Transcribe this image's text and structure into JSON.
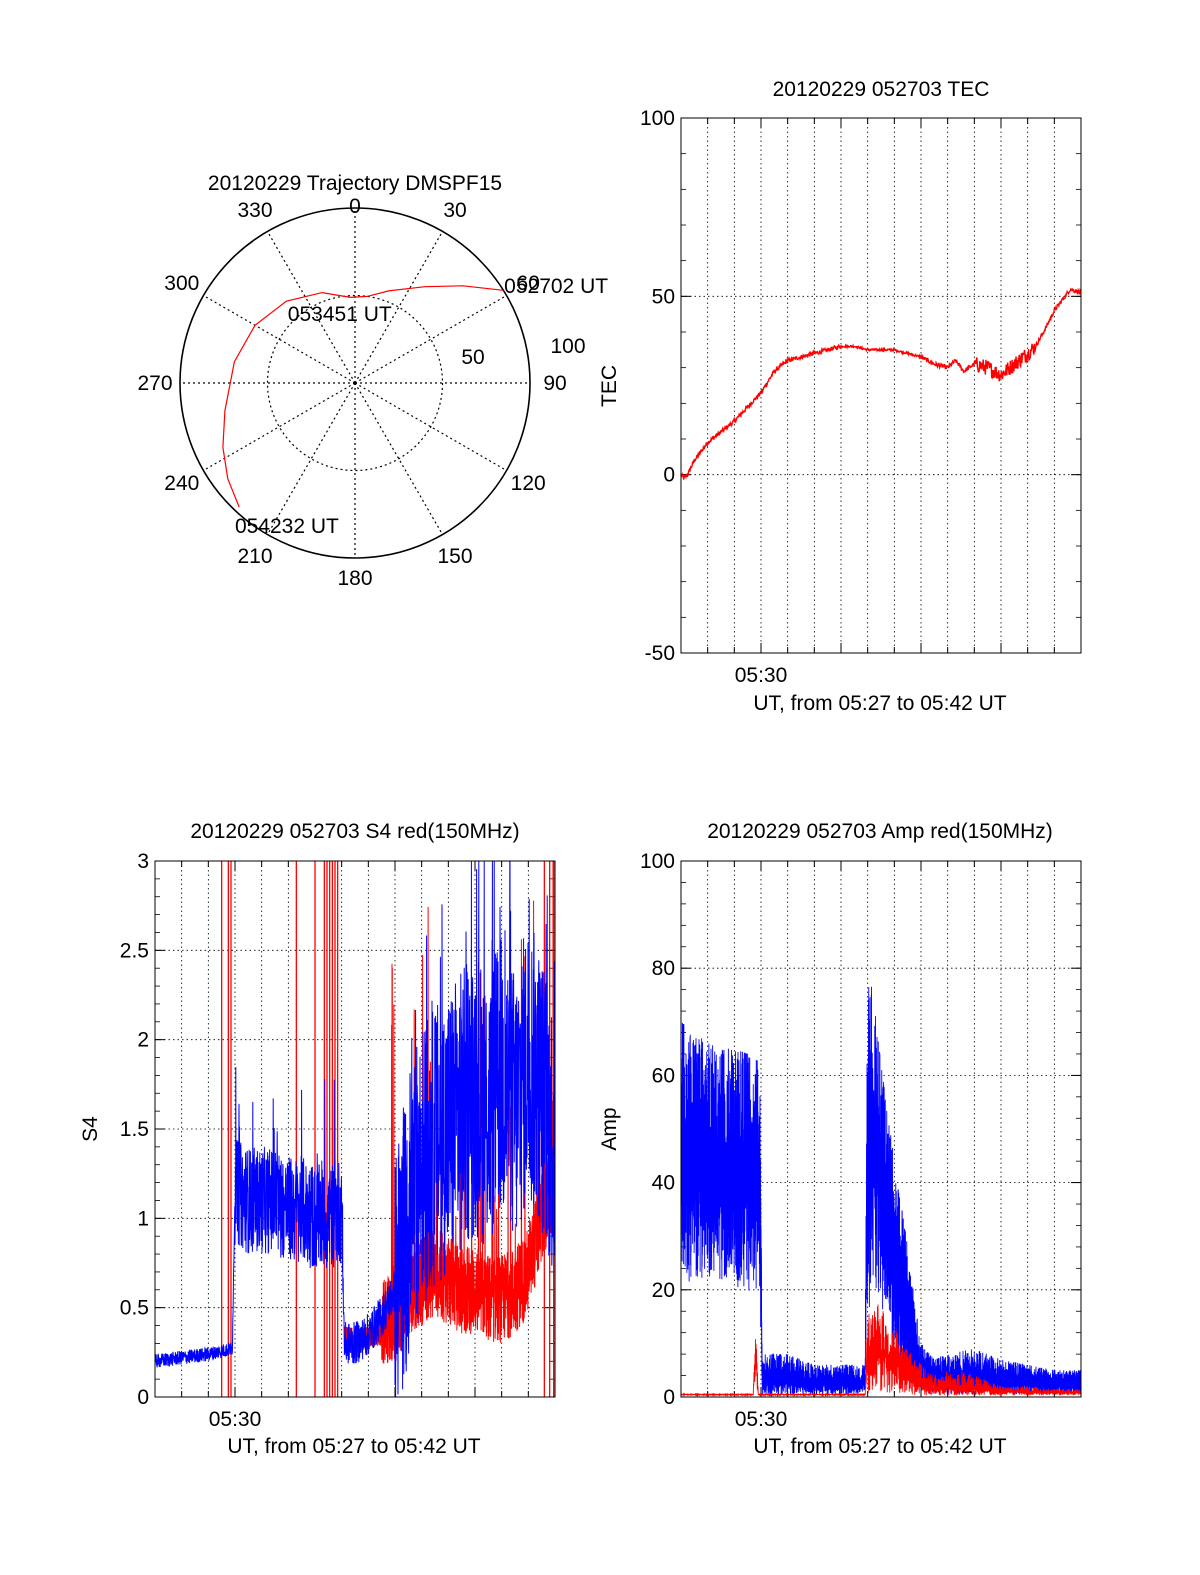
{
  "colors": {
    "red": "#ff0000",
    "blue": "#0000ff",
    "axis": "#000000",
    "grid": "#000000",
    "background": "#ffffff"
  },
  "chart_data": [
    {
      "type": "polar",
      "title": "20120229 Trajectory DMSPF15",
      "angle_labels": [
        "0",
        "30",
        "60",
        "90",
        "120",
        "150",
        "180",
        "210",
        "240",
        "270",
        "300",
        "330"
      ],
      "angles_deg": [
        0,
        30,
        60,
        90,
        120,
        150,
        180,
        210,
        240,
        270,
        300,
        330
      ],
      "radial_labels": [
        "50",
        "100"
      ],
      "radial_values": [
        50,
        100
      ],
      "rlim": [
        0,
        100
      ],
      "grid": true,
      "trajectory": {
        "color": "red",
        "points": [
          {
            "az": 58,
            "r": 100
          },
          {
            "az": 48,
            "r": 83
          },
          {
            "az": 36,
            "r": 68
          },
          {
            "az": 20,
            "r": 56
          },
          {
            "az": 8,
            "r": 50
          },
          {
            "az": -3,
            "r": 49
          },
          {
            "az": -20,
            "r": 55
          },
          {
            "az": -40,
            "r": 61
          },
          {
            "az": -60,
            "r": 66
          },
          {
            "az": -80,
            "r": 70
          },
          {
            "az": -102,
            "r": 76
          },
          {
            "az": -116,
            "r": 84
          },
          {
            "az": -127,
            "r": 91
          },
          {
            "az": -137,
            "r": 97
          }
        ]
      },
      "annotations": [
        {
          "text": "052702 UT",
          "az": 57,
          "r": 103
        },
        {
          "text": "053451 UT",
          "az": -10,
          "r": 50
        },
        {
          "text": "054232 UT",
          "az": -135,
          "r": 97
        }
      ]
    },
    {
      "type": "line",
      "title": "20120229 052703 TEC",
      "xlabel": "UT, from 05:27 to 05:42 UT",
      "ylabel": "TEC",
      "xlim": [
        0,
        15
      ],
      "ylim": [
        -50,
        100
      ],
      "yticks": [
        -50,
        0,
        50,
        100
      ],
      "xtick_labels": [
        {
          "x": 3,
          "label": "05:30"
        }
      ],
      "grid": true,
      "series": [
        {
          "name": "TEC",
          "color": "red",
          "x": [
            0,
            0.1,
            0.25,
            0.5,
            1,
            1.5,
            2,
            2.5,
            3,
            3.5,
            4,
            4.5,
            5,
            5.5,
            6,
            6.5,
            7,
            7.5,
            8,
            8.5,
            9,
            9.5,
            10,
            10.3,
            10.6,
            11,
            11.5,
            12,
            12.5,
            13,
            13.3,
            13.6,
            14,
            14.2,
            14.6,
            15
          ],
          "y": [
            0,
            -1,
            0,
            4,
            9,
            12,
            15,
            19,
            23,
            29,
            32,
            33,
            34,
            35,
            36,
            36,
            35,
            35,
            35,
            34,
            33,
            31,
            30,
            32,
            29,
            31,
            30,
            28,
            31,
            34,
            36,
            40,
            46,
            48,
            52,
            51
          ]
        }
      ]
    },
    {
      "type": "line",
      "title": "20120229 052703 S4 red(150MHz)",
      "xlabel": "UT, from 05:27 to 05:42 UT",
      "ylabel": "S4",
      "xlim": [
        0,
        15
      ],
      "ylim": [
        0,
        3
      ],
      "yticks": [
        0,
        0.5,
        1,
        1.5,
        2,
        2.5,
        3
      ],
      "ytick_labels": [
        "0",
        "0.5",
        "1",
        "1.5",
        "2",
        "2.5",
        "3"
      ],
      "xtick_labels": [
        {
          "x": 3,
          "label": "05:30"
        }
      ],
      "grid": true,
      "series": [
        {
          "name": "S4 blue",
          "color": "blue",
          "x": [
            0,
            1,
            2,
            2.9,
            3.0,
            3.5,
            4,
            4.5,
            5,
            5.5,
            6,
            6.5,
            7.0,
            7.1,
            7.5,
            8,
            8.5,
            9,
            9.5,
            10,
            10.5,
            11,
            11.5,
            12,
            12.5,
            13,
            13.5,
            14,
            14.5,
            15
          ],
          "y": [
            0.2,
            0.22,
            0.24,
            0.27,
            1.15,
            1.1,
            1.1,
            1.1,
            1.05,
            1.05,
            1.0,
            1.0,
            1.05,
            0.3,
            0.3,
            0.35,
            0.45,
            0.6,
            1.0,
            1.3,
            1.4,
            1.5,
            1.6,
            1.7,
            1.6,
            1.8,
            1.6,
            1.9,
            1.7,
            1.4
          ]
        },
        {
          "name": "S4 red",
          "color": "red",
          "x": [
            7.1,
            7.5,
            8,
            8.5,
            9,
            9.5,
            10,
            10.5,
            11,
            11.5,
            12,
            12.5,
            13,
            13.5,
            14,
            14.5,
            15
          ],
          "y": [
            0.3,
            0.28,
            0.3,
            0.33,
            0.35,
            0.5,
            0.55,
            0.6,
            0.55,
            0.5,
            0.5,
            0.45,
            0.45,
            0.5,
            0.6,
            0.9,
            1.1
          ]
        }
      ],
      "red_spikes_x": [
        2.5,
        2.75,
        2.85,
        5.3,
        6.0,
        6.35,
        6.45,
        6.55,
        6.65,
        6.75,
        6.85,
        14.6,
        14.8,
        14.95
      ]
    },
    {
      "type": "line",
      "title": "20120229 052703 Amp red(150MHz)",
      "xlabel": "UT, from 05:27 to 05:42 UT",
      "ylabel": "Amp",
      "xlim": [
        0,
        15
      ],
      "ylim": [
        0,
        100
      ],
      "yticks": [
        0,
        20,
        40,
        60,
        80,
        100
      ],
      "xtick_labels": [
        {
          "x": 3,
          "label": "05:30"
        }
      ],
      "grid": true,
      "series": [
        {
          "name": "Amp blue",
          "color": "blue",
          "x": [
            0,
            0.5,
            1,
            1.5,
            2,
            2.5,
            2.95,
            3.05,
            4,
            5,
            6,
            6.9,
            7.0,
            7.2,
            7.5,
            8,
            8.5,
            9,
            9.5,
            10,
            11,
            12,
            13,
            14,
            15
          ],
          "y": [
            45,
            44,
            43,
            42,
            42,
            41,
            40,
            3,
            3,
            2.5,
            2.5,
            2.5,
            50,
            52,
            40,
            25,
            15,
            5,
            3,
            3,
            3,
            3,
            2.5,
            2.5,
            2
          ],
          "band_max": [
            70,
            68,
            66,
            65,
            65,
            64,
            63,
            8,
            8,
            6,
            6,
            6,
            82,
            76,
            62,
            44,
            28,
            10,
            7,
            8,
            9,
            7,
            6,
            5,
            5
          ],
          "band_min": [
            20,
            22,
            22,
            22,
            20,
            20,
            18,
            0.5,
            0.5,
            0.5,
            0.5,
            0.5,
            15,
            20,
            15,
            5,
            2,
            1,
            0.5,
            0.5,
            0.5,
            0.5,
            0.5,
            0.5,
            0.5
          ]
        },
        {
          "name": "Amp red",
          "color": "red",
          "x": [
            0,
            2.5,
            2.7,
            2.8,
            2.9,
            3.0,
            6.9,
            7.0,
            7.3,
            7.7,
            8,
            8.5,
            9,
            9.5,
            10,
            10.5,
            11,
            12,
            13,
            14,
            15
          ],
          "y": [
            0.5,
            0.5,
            0.5,
            10,
            0.5,
            0.5,
            0.5,
            6,
            9,
            8,
            7,
            4,
            2,
            1.5,
            2,
            1.8,
            1.5,
            1,
            1,
            0.8,
            0.8
          ],
          "band_max": [
            0.5,
            0.5,
            0.5,
            14,
            0.5,
            0.5,
            0.5,
            15,
            18,
            16,
            13,
            9,
            6,
            4,
            5,
            5,
            4,
            2,
            2,
            1.5,
            1.5
          ]
        }
      ]
    }
  ]
}
